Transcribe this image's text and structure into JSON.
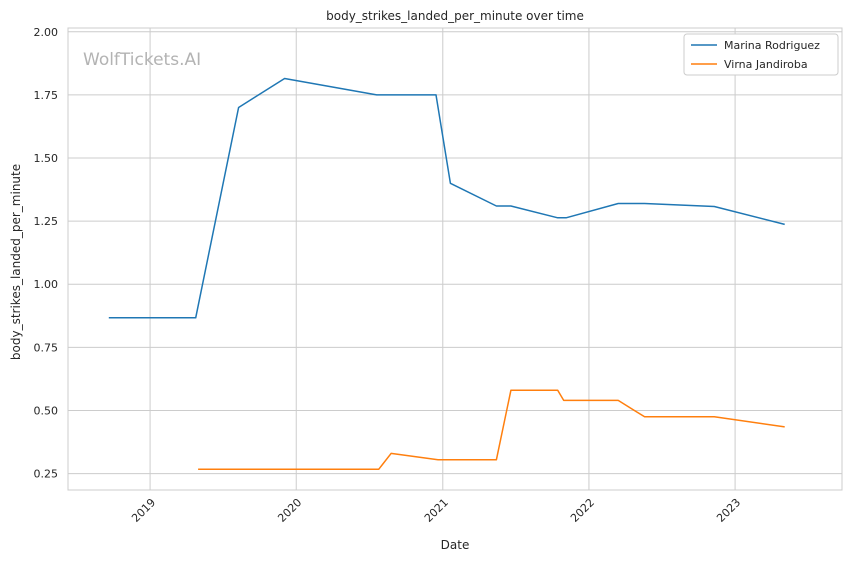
{
  "chart_data": {
    "type": "line",
    "title": "body_strikes_landed_per_minute over time",
    "xlabel": "Date",
    "ylabel": "body_strikes_landed_per_minute",
    "watermark": "WolfTickets.AI",
    "x_axis": {
      "type": "date",
      "range": [
        "2018-06-10",
        "2023-09-25"
      ],
      "ticks": [
        "2019",
        "2020",
        "2021",
        "2022",
        "2023"
      ]
    },
    "y_axis": {
      "range": [
        0.185,
        2.015
      ],
      "ticks": [
        "0.25",
        "0.50",
        "0.75",
        "1.00",
        "1.25",
        "1.50",
        "1.75",
        "2.00"
      ]
    },
    "grid": true,
    "legend_position": "top-right",
    "series": [
      {
        "name": "Marina Rodriguez",
        "color": "#1f77b4",
        "points": [
          [
            "2018-09-20",
            0.867
          ],
          [
            "2019-04-25",
            0.867
          ],
          [
            "2019-08-10",
            1.7
          ],
          [
            "2019-12-03",
            1.815
          ],
          [
            "2020-07-20",
            1.75
          ],
          [
            "2020-12-15",
            1.75
          ],
          [
            "2021-01-20",
            1.4
          ],
          [
            "2021-05-15",
            1.31
          ],
          [
            "2021-06-20",
            1.31
          ],
          [
            "2021-10-15",
            1.263
          ],
          [
            "2021-11-05",
            1.263
          ],
          [
            "2022-03-15",
            1.32
          ],
          [
            "2022-05-20",
            1.32
          ],
          [
            "2022-11-10",
            1.308
          ],
          [
            "2023-05-05",
            1.237
          ]
        ]
      },
      {
        "name": "Virna Jandiroba",
        "color": "#ff7f0e",
        "points": [
          [
            "2019-05-01",
            0.267
          ],
          [
            "2020-07-25",
            0.267
          ],
          [
            "2020-08-25",
            0.33
          ],
          [
            "2020-12-20",
            0.305
          ],
          [
            "2021-05-15",
            0.305
          ],
          [
            "2021-06-20",
            0.58
          ],
          [
            "2021-10-15",
            0.58
          ],
          [
            "2021-10-30",
            0.54
          ],
          [
            "2022-03-15",
            0.54
          ],
          [
            "2022-05-20",
            0.475
          ],
          [
            "2022-11-10",
            0.475
          ],
          [
            "2023-05-05",
            0.435
          ]
        ]
      }
    ]
  }
}
